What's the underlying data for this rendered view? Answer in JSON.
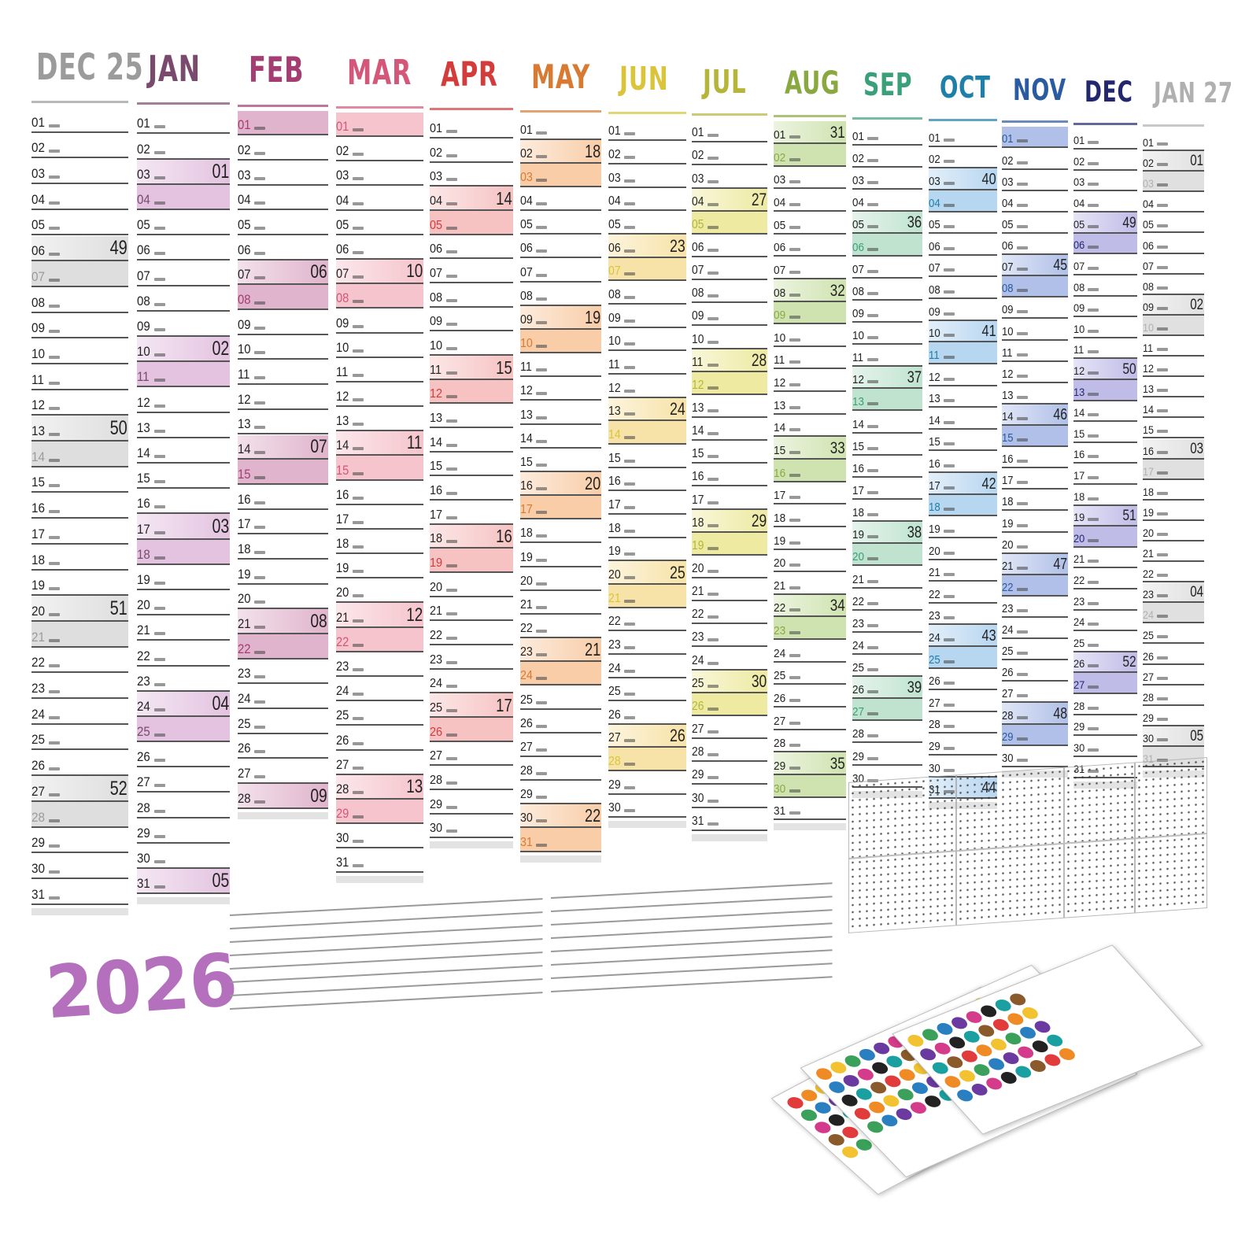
{
  "year": "2026",
  "months": [
    {
      "name": "DEC 25",
      "color": "#9b9b9b",
      "shade": "#dedede",
      "days": 31,
      "weekends": [
        6,
        7,
        13,
        14,
        20,
        21,
        27,
        28
      ],
      "weeks": [
        {
          "day": 6,
          "week": "49"
        },
        {
          "day": 13,
          "week": "50"
        },
        {
          "day": 20,
          "week": "51"
        },
        {
          "day": 27,
          "week": "52"
        }
      ]
    },
    {
      "name": "JAN",
      "color": "#7a4a6e",
      "shade": "#e3c3e0",
      "days": 31,
      "weekends": [
        3,
        4,
        10,
        11,
        17,
        18,
        24,
        25,
        31
      ],
      "weeks": [
        {
          "day": 3,
          "week": "01"
        },
        {
          "day": 10,
          "week": "02"
        },
        {
          "day": 17,
          "week": "03"
        },
        {
          "day": 24,
          "week": "04"
        },
        {
          "day": 31,
          "week": "05"
        }
      ]
    },
    {
      "name": "FEB",
      "color": "#a33d72",
      "shade": "#e0b4cc",
      "days": 28,
      "weekends": [
        1,
        7,
        8,
        14,
        15,
        21,
        22,
        28
      ],
      "weeks": [
        {
          "day": 7,
          "week": "06"
        },
        {
          "day": 14,
          "week": "07"
        },
        {
          "day": 21,
          "week": "08"
        },
        {
          "day": 28,
          "week": "09"
        }
      ]
    },
    {
      "name": "MAR",
      "color": "#d4577a",
      "shade": "#f5c4cc",
      "days": 31,
      "weekends": [
        1,
        7,
        8,
        14,
        15,
        21,
        22,
        28,
        29
      ],
      "weeks": [
        {
          "day": 7,
          "week": "10"
        },
        {
          "day": 14,
          "week": "11"
        },
        {
          "day": 21,
          "week": "12"
        },
        {
          "day": 28,
          "week": "13"
        }
      ]
    },
    {
      "name": "APR",
      "color": "#d43b3b",
      "shade": "#f6c2c2",
      "days": 30,
      "weekends": [
        4,
        5,
        11,
        12,
        18,
        19,
        25,
        26
      ],
      "weeks": [
        {
          "day": 4,
          "week": "14"
        },
        {
          "day": 11,
          "week": "15"
        },
        {
          "day": 18,
          "week": "16"
        },
        {
          "day": 25,
          "week": "17"
        }
      ]
    },
    {
      "name": "MAY",
      "color": "#d97a32",
      "shade": "#f8cda8",
      "days": 31,
      "weekends": [
        2,
        3,
        9,
        10,
        16,
        17,
        23,
        24,
        30,
        31
      ],
      "weeks": [
        {
          "day": 2,
          "week": "18"
        },
        {
          "day": 9,
          "week": "19"
        },
        {
          "day": 16,
          "week": "20"
        },
        {
          "day": 23,
          "week": "21"
        },
        {
          "day": 30,
          "week": "22"
        }
      ]
    },
    {
      "name": "JUN",
      "color": "#d9c43a",
      "shade": "#f7e3a8",
      "days": 30,
      "weekends": [
        6,
        7,
        13,
        14,
        20,
        21,
        27,
        28
      ],
      "weeks": [
        {
          "day": 6,
          "week": "23"
        },
        {
          "day": 13,
          "week": "24"
        },
        {
          "day": 20,
          "week": "25"
        },
        {
          "day": 27,
          "week": "26"
        }
      ]
    },
    {
      "name": "JUL",
      "color": "#b5b53a",
      "shade": "#eeeaa2",
      "days": 31,
      "weekends": [
        4,
        5,
        11,
        12,
        18,
        19,
        25,
        26
      ],
      "weeks": [
        {
          "day": 4,
          "week": "27"
        },
        {
          "day": 11,
          "week": "28"
        },
        {
          "day": 18,
          "week": "29"
        },
        {
          "day": 25,
          "week": "30"
        }
      ]
    },
    {
      "name": "AUG",
      "color": "#8aa840",
      "shade": "#cfe3b0",
      "days": 31,
      "weekends": [
        1,
        2,
        8,
        9,
        15,
        16,
        22,
        23,
        29,
        30
      ],
      "weeks": [
        {
          "day": 1,
          "week": "31"
        },
        {
          "day": 8,
          "week": "32"
        },
        {
          "day": 15,
          "week": "33"
        },
        {
          "day": 22,
          "week": "34"
        },
        {
          "day": 29,
          "week": "35"
        }
      ]
    },
    {
      "name": "SEP",
      "color": "#3aa07a",
      "shade": "#bfe3cf",
      "days": 30,
      "weekends": [
        5,
        6,
        12,
        13,
        19,
        20,
        26,
        27
      ],
      "weeks": [
        {
          "day": 5,
          "week": "36"
        },
        {
          "day": 12,
          "week": "37"
        },
        {
          "day": 19,
          "week": "38"
        },
        {
          "day": 26,
          "week": "39"
        }
      ]
    },
    {
      "name": "OCT",
      "color": "#1e7fa8",
      "shade": "#b7d6f0",
      "days": 31,
      "weekends": [
        3,
        4,
        10,
        11,
        17,
        18,
        24,
        25,
        31
      ],
      "weeks": [
        {
          "day": 3,
          "week": "40"
        },
        {
          "day": 10,
          "week": "41"
        },
        {
          "day": 17,
          "week": "42"
        },
        {
          "day": 24,
          "week": "43"
        },
        {
          "day": 31,
          "week": "44"
        }
      ]
    },
    {
      "name": "NOV",
      "color": "#2a5aa0",
      "shade": "#b0c0e8",
      "days": 30,
      "weekends": [
        1,
        7,
        8,
        14,
        15,
        21,
        22,
        28,
        29
      ],
      "weeks": [
        {
          "day": 7,
          "week": "45"
        },
        {
          "day": 14,
          "week": "46"
        },
        {
          "day": 21,
          "week": "47"
        },
        {
          "day": 28,
          "week": "48"
        }
      ]
    },
    {
      "name": "DEC",
      "color": "#22276e",
      "shade": "#c0bce8",
      "days": 31,
      "weekends": [
        5,
        6,
        12,
        13,
        19,
        20,
        26,
        27
      ],
      "weeks": [
        {
          "day": 5,
          "week": "49"
        },
        {
          "day": 12,
          "week": "50"
        },
        {
          "day": 19,
          "week": "51"
        },
        {
          "day": 26,
          "week": "52"
        }
      ]
    },
    {
      "name": "JAN 27",
      "color": "#b0b0b0",
      "shade": "#e0e0e0",
      "days": 31,
      "weekends": [
        2,
        3,
        9,
        10,
        16,
        17,
        23,
        24,
        30,
        31
      ],
      "weeks": [
        {
          "day": 2,
          "week": "01"
        },
        {
          "day": 9,
          "week": "02"
        },
        {
          "day": 16,
          "week": "03"
        },
        {
          "day": 23,
          "week": "04"
        },
        {
          "day": 30,
          "week": "05"
        }
      ]
    }
  ],
  "sticker_colors": [
    "#e23b3b",
    "#f08a24",
    "#f2c230",
    "#3aa05a",
    "#2a7fc0",
    "#6a3aa0",
    "#d43b8a",
    "#222222",
    "#1aa0a0",
    "#8a5a2a"
  ]
}
